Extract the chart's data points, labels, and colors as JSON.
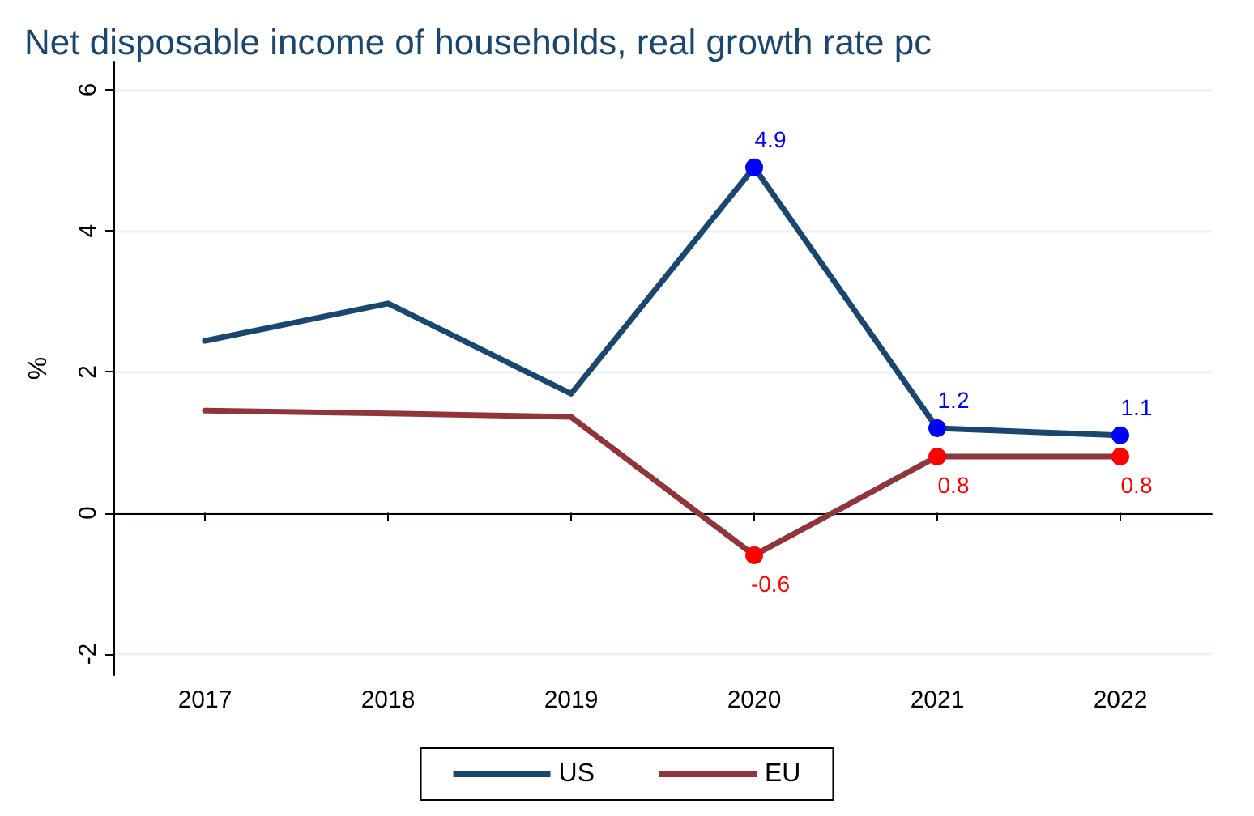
{
  "chart_data": {
    "type": "line",
    "title": "Net disposable income of households, real growth rate pc",
    "ylabel": "%",
    "categories": [
      "2017",
      "2018",
      "2019",
      "2020",
      "2021",
      "2022"
    ],
    "series": [
      {
        "name": "US",
        "color": "#1a476f",
        "colors": [
          "#0000ff",
          "#0000ff",
          "#0000ff",
          "#0000ff",
          "#0000ff",
          "#0000ff"
        ],
        "values": [
          2.44,
          2.97,
          1.69,
          4.9,
          1.2,
          1.1
        ],
        "value_labels": [
          null,
          null,
          null,
          "4.9",
          "1.2",
          "1.1"
        ]
      },
      {
        "name": "EU",
        "color": "#90353b",
        "colors": [
          "#ff0000",
          "#ff0000",
          "#ff0000",
          "#ff0000",
          "#ff0000",
          "#ff0000"
        ],
        "values": [
          1.45,
          1.41,
          1.36,
          -0.6,
          0.8,
          0.8
        ],
        "value_labels": [
          null,
          null,
          null,
          "-0.6",
          "0.8",
          "0.8"
        ]
      }
    ],
    "ylim": [
      -2.3,
      6.4
    ],
    "yticks": [
      -2,
      0,
      2,
      4,
      6
    ],
    "grid": "y",
    "legend": "bottom",
    "marker": "circle",
    "line_style": "solid"
  }
}
